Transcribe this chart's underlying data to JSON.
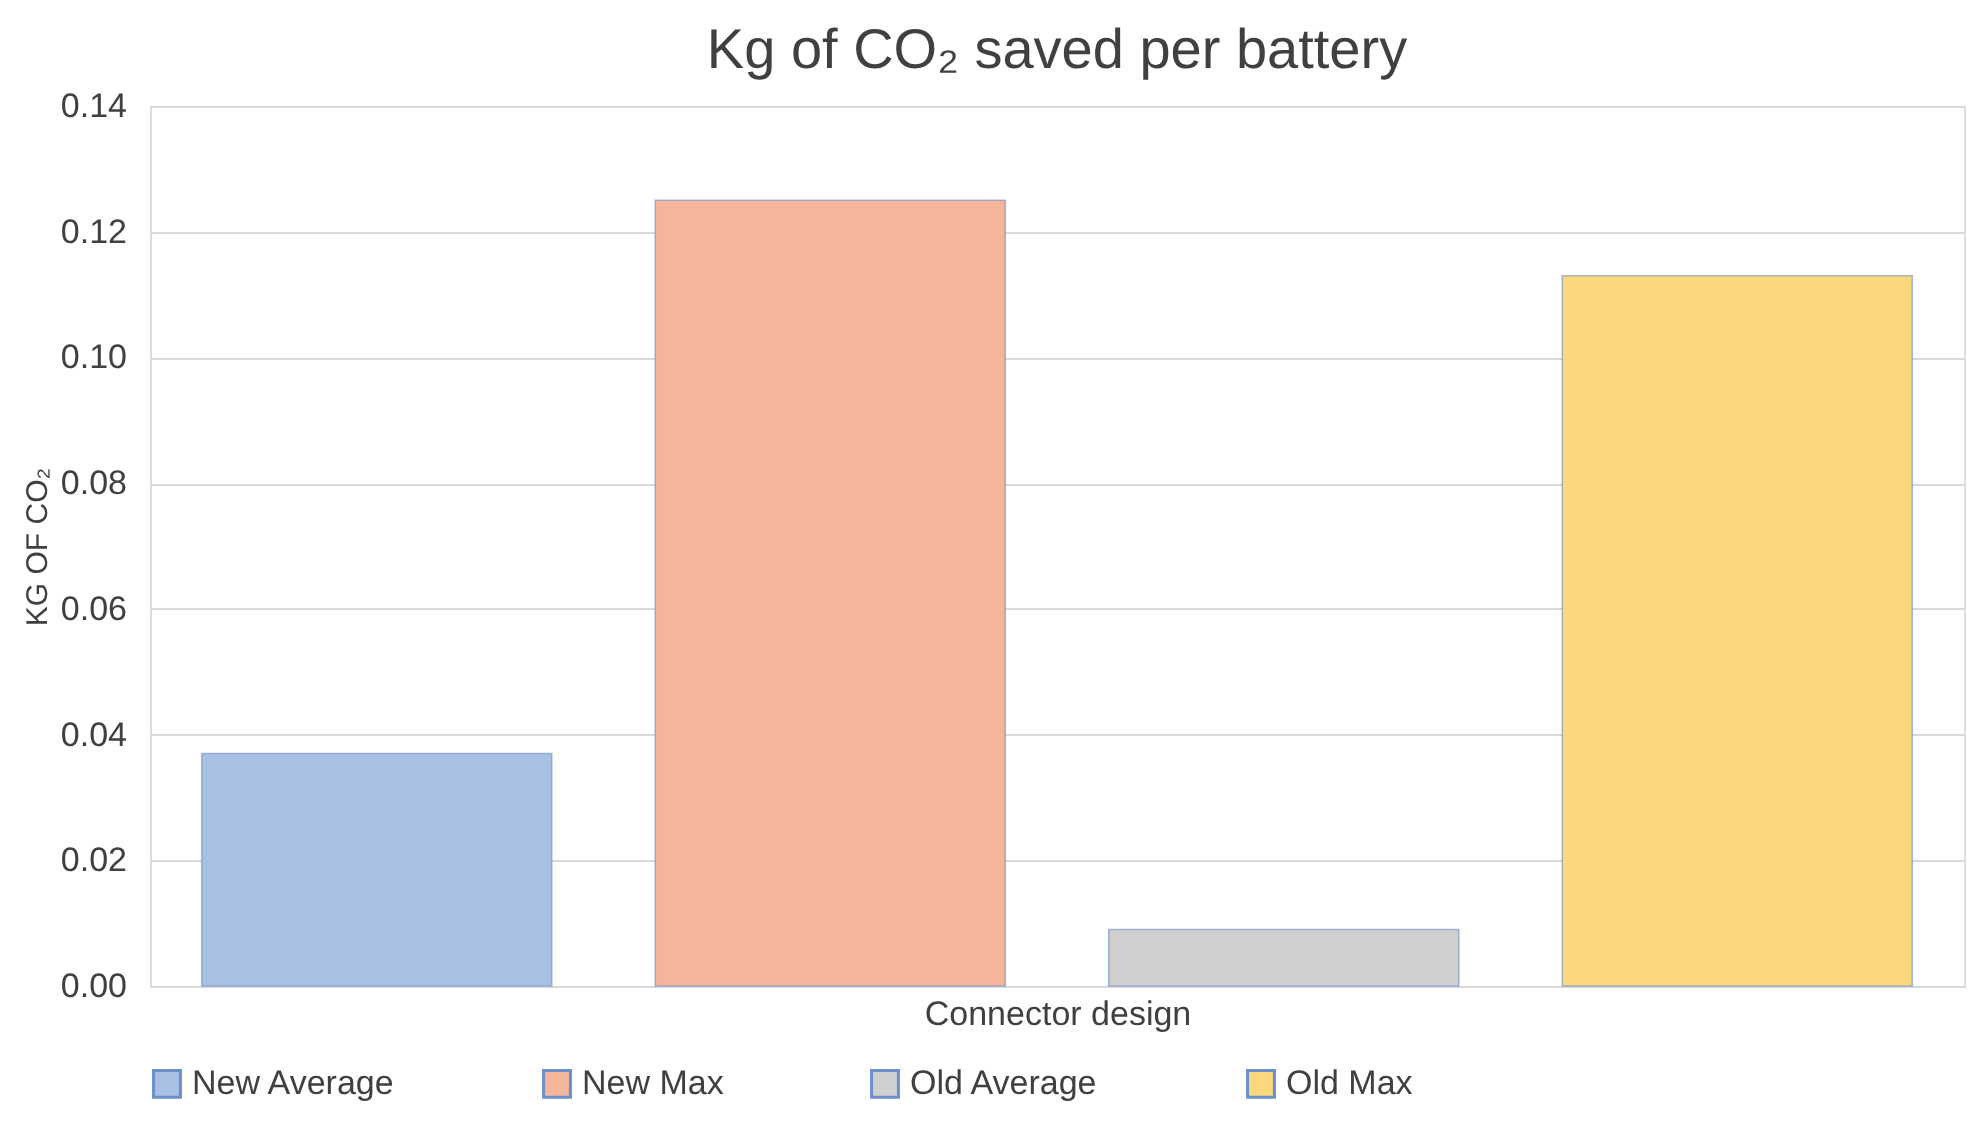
{
  "chart_data": {
    "type": "bar",
    "title": "Kg of CO₂ saved per battery",
    "xlabel": "Connector design",
    "ylabel": "KG OF CO₂",
    "categories": [
      null,
      null,
      null,
      null
    ],
    "series": [
      {
        "name": "New Average",
        "color": "#a9c0e4",
        "values": [
          0.037,
          null,
          null,
          null
        ]
      },
      {
        "name": "New Max",
        "color": "#f5b59a",
        "values": [
          null,
          0.125,
          null,
          null
        ]
      },
      {
        "name": "Old Average",
        "color": "#d0d0d0",
        "values": [
          null,
          null,
          0.009,
          null
        ]
      },
      {
        "name": "Old Max",
        "color": "#fbd77e",
        "values": [
          null,
          null,
          null,
          0.113
        ]
      }
    ],
    "ylim": [
      0,
      0.14
    ],
    "yticks": [
      {
        "value": 0,
        "label": "0.00"
      },
      {
        "value": 0.02,
        "label": "0.02"
      },
      {
        "value": 0.04,
        "label": "0.04"
      },
      {
        "value": 0.06,
        "label": "0.06"
      },
      {
        "value": 0.08,
        "label": "0.08"
      },
      {
        "value": 0.1,
        "label": "0.10"
      },
      {
        "value": 0.12,
        "label": "0.12"
      },
      {
        "value": 0.14,
        "label": "0.14"
      }
    ],
    "grid": "y",
    "legend": "bottom",
    "tick_labels": "y"
  }
}
